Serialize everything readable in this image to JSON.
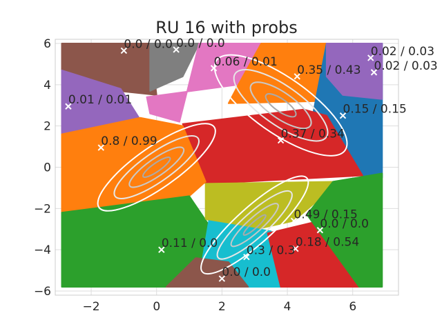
{
  "chart_data": {
    "type": "scatter",
    "title": "RU 16 with probs",
    "xlim": [
      -3.1,
      7.4
    ],
    "ylim": [
      -6.2,
      6.2
    ],
    "xticks": [
      -2,
      0,
      2,
      4,
      6
    ],
    "yticks": [
      -6,
      -4,
      -2,
      0,
      2,
      4,
      6
    ],
    "xtick_labels": [
      "−2",
      "0",
      "2",
      "4",
      "6"
    ],
    "ytick_labels": [
      "−6",
      "−4",
      "−2",
      "0",
      "2",
      "4",
      "6"
    ],
    "grid": true,
    "regions": [
      {
        "color": "#8c564b",
        "polygon": [
          [
            -2.9,
            6
          ],
          [
            -0.2,
            6
          ],
          [
            0,
            3.5
          ],
          [
            -1.2,
            3.7
          ],
          [
            -2.9,
            4.5
          ]
        ]
      },
      {
        "color": "#7f7f7f",
        "polygon": [
          [
            -0.2,
            6
          ],
          [
            1.3,
            6
          ],
          [
            0.8,
            4.4
          ],
          [
            -0.2,
            3.7
          ]
        ]
      },
      {
        "color": "#e377c2",
        "polygon": [
          [
            1.3,
            6
          ],
          [
            3.2,
            6
          ],
          [
            2.5,
            4
          ],
          [
            -0.3,
            3.4
          ],
          [
            -0.2,
            2.6
          ],
          [
            0.7,
            2.2
          ]
        ]
      },
      {
        "color": "#ff7f0e",
        "polygon": [
          [
            3.2,
            6
          ],
          [
            5.2,
            6
          ],
          [
            4.9,
            3.2
          ],
          [
            2.2,
            3.1
          ],
          [
            2.5,
            4
          ]
        ]
      },
      {
        "color": "#1f77b4",
        "polygon": [
          [
            5.2,
            6
          ],
          [
            6.9,
            6
          ],
          [
            6.9,
            -0.5
          ],
          [
            5.5,
            -0.3
          ],
          [
            4.8,
            2.7
          ]
        ]
      },
      {
        "color": "#9467bd",
        "polygon": [
          [
            5.2,
            6
          ],
          [
            6.9,
            6
          ],
          [
            6.9,
            3.3
          ],
          [
            5.7,
            3.5
          ],
          [
            5.2,
            4.4
          ]
        ]
      },
      {
        "color": "#9467bd",
        "polygon": [
          [
            -2.9,
            4.7
          ],
          [
            -1.1,
            3.8
          ],
          [
            -0.5,
            2.3
          ],
          [
            -2.9,
            1.6
          ]
        ]
      },
      {
        "color": "#d62728",
        "polygon": [
          [
            0.8,
            2.1
          ],
          [
            4.5,
            2.8
          ],
          [
            5.2,
            2.5
          ],
          [
            6.3,
            -0.4
          ],
          [
            1.5,
            -0.8
          ]
        ]
      },
      {
        "color": "#ff7f0e",
        "polygon": [
          [
            -2.9,
            1.6
          ],
          [
            -0.5,
            2.4
          ],
          [
            0.8,
            2
          ],
          [
            1.5,
            -0.7
          ],
          [
            1,
            -1.4
          ],
          [
            -2.9,
            -2.2
          ]
        ]
      },
      {
        "color": "#2ca02c",
        "polygon": [
          [
            -2.9,
            -2.2
          ],
          [
            1,
            -1.4
          ],
          [
            1.6,
            -2.8
          ],
          [
            1.4,
            -4.6
          ],
          [
            0.5,
            -5.8
          ],
          [
            -2.9,
            -5.8
          ]
        ]
      },
      {
        "color": "#bcbd22",
        "polygon": [
          [
            1.5,
            -0.8
          ],
          [
            5.6,
            -0.7
          ],
          [
            4.2,
            -2.6
          ],
          [
            2.5,
            -3.2
          ],
          [
            1.5,
            -2.5
          ]
        ]
      },
      {
        "color": "#17becf",
        "polygon": [
          [
            1.6,
            -2.6
          ],
          [
            3.5,
            -3.1
          ],
          [
            3.8,
            -5.8
          ],
          [
            2.2,
            -5.8
          ],
          [
            1.4,
            -4.5
          ]
        ]
      },
      {
        "color": "#d62728",
        "polygon": [
          [
            3.4,
            -3.2
          ],
          [
            5.5,
            -2.4
          ],
          [
            6.2,
            -3.4
          ],
          [
            6.4,
            -5.8
          ],
          [
            3.8,
            -5.8
          ]
        ]
      },
      {
        "color": "#2ca02c",
        "polygon": [
          [
            5.4,
            -0.7
          ],
          [
            6.9,
            -0.3
          ],
          [
            6.9,
            -5.8
          ],
          [
            6.2,
            -5.8
          ],
          [
            4.6,
            -2.3
          ]
        ]
      },
      {
        "color": "#8c564b",
        "polygon": [
          [
            0.3,
            -5.8
          ],
          [
            1.2,
            -4.4
          ],
          [
            2.2,
            -4.6
          ],
          [
            2.8,
            -5.8
          ]
        ]
      }
    ],
    "contours": [
      {
        "cx": 0,
        "cy": 0,
        "rx": [
          0.5,
          1.0,
          1.55,
          2.15
        ],
        "ry": [
          0.2,
          0.42,
          0.7,
          1.0
        ],
        "angle_deg": -35
      },
      {
        "cx": 3.8,
        "cy": 3,
        "rx": [
          0.55,
          1.1,
          1.7,
          2.4
        ],
        "ry": [
          0.3,
          0.62,
          0.95,
          1.35
        ],
        "angle_deg": 35
      },
      {
        "cx": 3,
        "cy": -2.8,
        "rx": [
          0.45,
          0.95,
          1.5,
          2.15
        ],
        "ry": [
          0.15,
          0.35,
          0.6,
          0.88
        ],
        "angle_deg": -42
      }
    ],
    "points": [
      {
        "x": -1.0,
        "y": 5.65,
        "label": "0.0 / 0.0"
      },
      {
        "x": 0.6,
        "y": 5.7,
        "label": "0.0 / 0.0"
      },
      {
        "x": 1.75,
        "y": 4.8,
        "label": "0.06 / 0.01"
      },
      {
        "x": 6.55,
        "y": 5.3,
        "label": "0.02 / 0.03"
      },
      {
        "x": 6.65,
        "y": 4.6,
        "label": "0.02 / 0.03"
      },
      {
        "x": 4.3,
        "y": 4.4,
        "label": "0.35 / 0.43"
      },
      {
        "x": -2.7,
        "y": 2.95,
        "label": "0.01 / 0.01"
      },
      {
        "x": 5.7,
        "y": 2.5,
        "label": "0.15 / 0.15"
      },
      {
        "x": -1.7,
        "y": 0.95,
        "label": "0.8 / 0.99"
      },
      {
        "x": 3.8,
        "y": 1.3,
        "label": "0.37 / 0.34"
      },
      {
        "x": 4.2,
        "y": -2.6,
        "label": "0.49 / 0.15"
      },
      {
        "x": 5.0,
        "y": -3.05,
        "label": "0.0 / 0.0"
      },
      {
        "x": 0.15,
        "y": -4.0,
        "label": "0.11 / 0.0"
      },
      {
        "x": 4.25,
        "y": -3.95,
        "label": "0.18 / 0.54"
      },
      {
        "x": 2.75,
        "y": -4.35,
        "label": "0.3 / 0.3"
      },
      {
        "x": 2.0,
        "y": -5.4,
        "label": "0.0 / 0.0"
      }
    ]
  }
}
